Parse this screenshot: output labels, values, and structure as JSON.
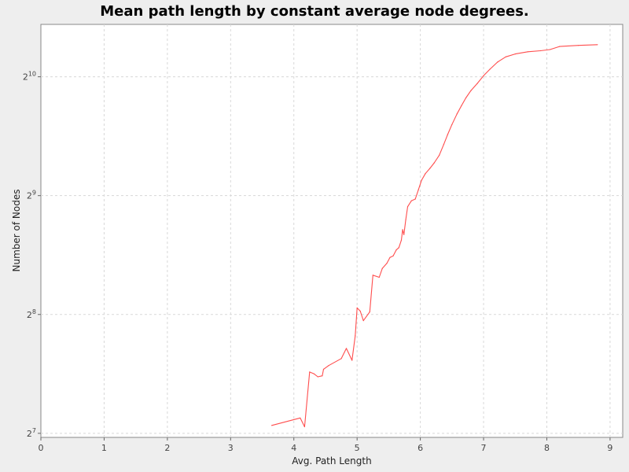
{
  "chart_data": {
    "type": "line",
    "title": "Mean path length by constant average node degrees.",
    "xlabel": "Avg. Path Length",
    "ylabel": "Number of Nodes",
    "x_scale": "linear",
    "y_scale": "log2",
    "xlim": [
      0,
      9.2
    ],
    "ylim": [
      125,
      1390
    ],
    "x_ticks": [
      "0",
      "1",
      "2",
      "3",
      "4",
      "5",
      "6",
      "7",
      "8",
      "9"
    ],
    "y_ticks": [
      {
        "value": 128,
        "base": "2",
        "exp": "7"
      },
      {
        "value": 256,
        "base": "2",
        "exp": "8"
      },
      {
        "value": 512,
        "base": "2",
        "exp": "9"
      },
      {
        "value": 1024,
        "base": "2",
        "exp": "10"
      }
    ],
    "grid": true,
    "series": [
      {
        "color": "#ff4d4d",
        "points": [
          [
            3.65,
            134
          ],
          [
            4.1,
            140
          ],
          [
            4.17,
            133
          ],
          [
            4.25,
            183
          ],
          [
            4.32,
            181
          ],
          [
            4.38,
            178
          ],
          [
            4.45,
            179
          ],
          [
            4.47,
            186
          ],
          [
            4.55,
            190
          ],
          [
            4.75,
            198
          ],
          [
            4.83,
            210
          ],
          [
            4.92,
            196
          ],
          [
            4.97,
            226
          ],
          [
            5.0,
            266
          ],
          [
            5.05,
            261
          ],
          [
            5.1,
            247
          ],
          [
            5.2,
            260
          ],
          [
            5.25,
            322
          ],
          [
            5.35,
            318
          ],
          [
            5.4,
            335
          ],
          [
            5.47,
            345
          ],
          [
            5.52,
            357
          ],
          [
            5.57,
            360
          ],
          [
            5.62,
            373
          ],
          [
            5.66,
            378
          ],
          [
            5.7,
            395
          ],
          [
            5.72,
            420
          ],
          [
            5.74,
            408
          ],
          [
            5.77,
            445
          ],
          [
            5.8,
            480
          ],
          [
            5.86,
            497
          ],
          [
            5.92,
            502
          ],
          [
            5.97,
            530
          ],
          [
            6.02,
            560
          ],
          [
            6.08,
            582
          ],
          [
            6.15,
            600
          ],
          [
            6.22,
            620
          ],
          [
            6.3,
            648
          ],
          [
            6.37,
            690
          ],
          [
            6.43,
            730
          ],
          [
            6.5,
            775
          ],
          [
            6.58,
            825
          ],
          [
            6.65,
            865
          ],
          [
            6.72,
            905
          ],
          [
            6.8,
            945
          ],
          [
            6.9,
            985
          ],
          [
            7.0,
            1030
          ],
          [
            7.1,
            1070
          ],
          [
            7.22,
            1115
          ],
          [
            7.35,
            1150
          ],
          [
            7.5,
            1170
          ],
          [
            7.7,
            1185
          ],
          [
            7.9,
            1192
          ],
          [
            8.05,
            1200
          ],
          [
            8.2,
            1222
          ],
          [
            8.5,
            1230
          ],
          [
            8.8,
            1235
          ]
        ]
      }
    ]
  }
}
